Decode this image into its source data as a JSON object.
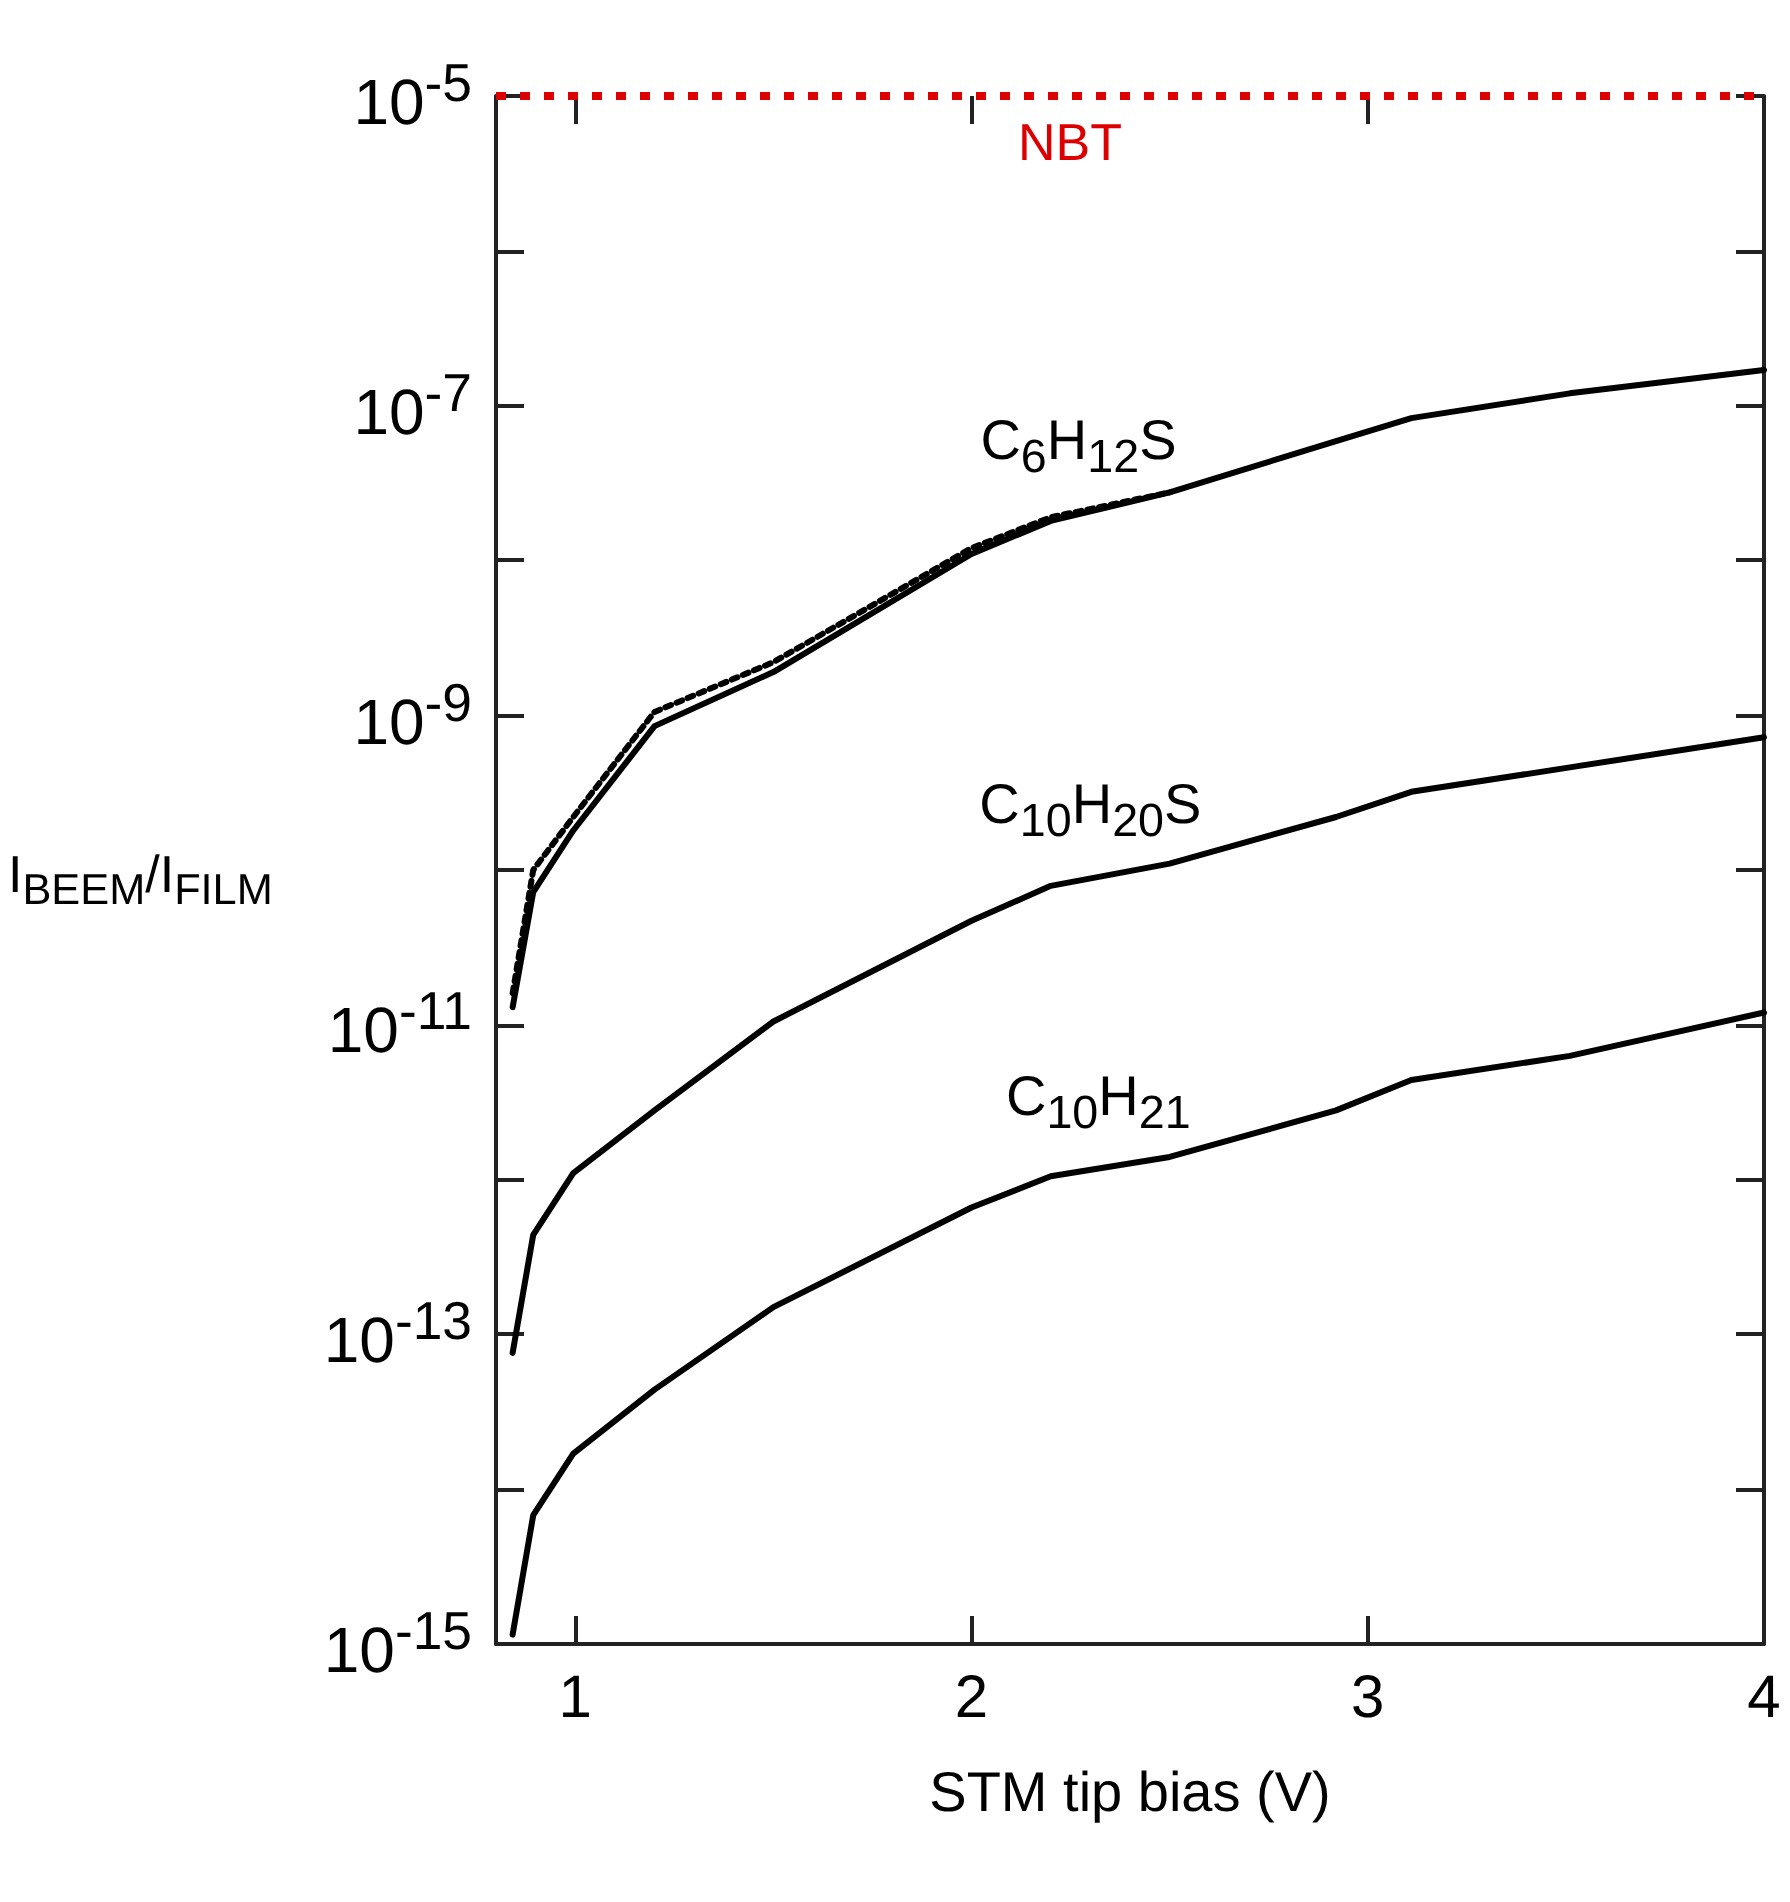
{
  "chart_data": {
    "type": "line",
    "xlabel": "STM tip bias (V)",
    "ylabel": "I$_{BEEM}$/I$_{FILM}$",
    "log": "y",
    "xlim": [
      0.8,
      4
    ],
    "xticks": [
      1,
      2,
      3,
      4
    ],
    "ylim": [
      1e-15,
      1e-05
    ],
    "yticks": [
      {
        "value": 1e-15,
        "label": "10$^{-15}$"
      },
      {
        "value": 1e-14,
        "label": null
      },
      {
        "value": 1e-13,
        "label": "10$^{-13}$"
      },
      {
        "value": 1e-12,
        "label": null
      },
      {
        "value": 1e-11,
        "label": "10$^{-11}$"
      },
      {
        "value": 1e-10,
        "label": null
      },
      {
        "value": 1e-09,
        "label": "10$^{-9}$"
      },
      {
        "value": 1e-08,
        "label": null
      },
      {
        "value": 1e-07,
        "label": "10$^{-7}$"
      },
      {
        "value": 1e-06,
        "label": null
      },
      {
        "value": 1e-05,
        "label": "10$^{-5}$"
      }
    ],
    "grid": false,
    "marker": "none",
    "series": [
      {
        "color": "#000000",
        "line_style": "dotted",
        "x": [
          0.842,
          0.894,
          0.995,
          1.2,
          1.5,
          2.0,
          2.2,
          2.5
        ],
        "values": [
          1.6e-11,
          1e-10,
          2.2e-10,
          1.05e-09,
          2.2e-09,
          1.2e-08,
          1.9e-08,
          2.75e-08
        ]
      },
      {
        "color": "#000000",
        "line_style": "solid",
        "x": [
          0.842,
          0.894,
          0.995,
          1.2,
          1.5,
          2.0,
          2.2,
          2.5,
          2.92,
          3.11,
          3.51,
          4.0
        ],
        "values": [
          1.3e-11,
          7.2e-11,
          1.8e-10,
          8.5e-10,
          1.9e-09,
          1.1e-08,
          1.8e-08,
          2.75e-08,
          5.9e-08,
          8.3e-08,
          1.2e-07,
          1.7e-07
        ]
      },
      {
        "color": "#000000",
        "line_style": "solid",
        "x": [
          0.842,
          0.894,
          0.995,
          1.2,
          1.5,
          2.0,
          2.2,
          2.5,
          2.92,
          3.11,
          3.51,
          4.0
        ],
        "values": [
          7.6e-14,
          4.4e-13,
          1.1e-12,
          2.8e-12,
          1.05e-11,
          4.7e-11,
          7.9e-11,
          1.1e-10,
          2.2e-10,
          3.2e-10,
          4.6e-10,
          7.2e-10
        ]
      },
      {
        "color": "#000000",
        "line_style": "solid",
        "x": [
          0.842,
          0.894,
          0.995,
          1.2,
          1.5,
          2.0,
          2.2,
          2.5,
          2.92,
          3.11,
          3.51,
          4.0
        ],
        "values": [
          1.15e-15,
          6.8e-15,
          1.7e-14,
          4.4e-14,
          1.5e-13,
          6.6e-13,
          1.05e-12,
          1.4e-12,
          2.8e-12,
          4.4e-12,
          6.3e-12,
          1.2e-11
        ]
      }
    ],
    "ref_lines": [
      {
        "axis": "y",
        "value": 1e-05,
        "label": "NBT",
        "color": "#dd0000",
        "line_style": "dotted"
      }
    ],
    "annotations": [
      {
        "text": "C$_{6}$H$_{12}$S",
        "x": 2.27,
        "y": 2e-08
      },
      {
        "text": "C$_{10}$H$_{20}$S",
        "x": 2.3,
        "y": 8.9e-11
      },
      {
        "text": "C$_{10}$H$_{21}$",
        "x": 2.32,
        "y": 1.17e-12
      }
    ]
  }
}
